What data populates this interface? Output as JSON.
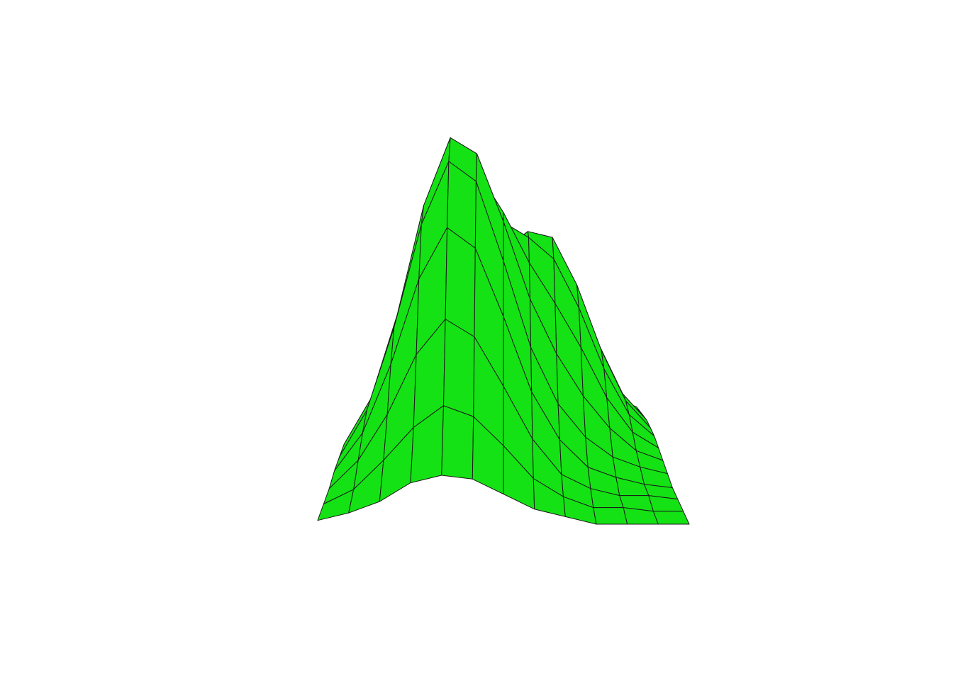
{
  "chart_data": {
    "type": "surface",
    "color": "#14e214",
    "edge_color": "#1a1a1a",
    "z": [
      [
        0.01,
        0.03,
        0.06,
        0.11,
        0.13,
        0.12,
        0.08,
        0.04,
        0.02,
        0,
        0,
        0,
        0
      ],
      [
        0.02,
        0.06,
        0.14,
        0.23,
        0.29,
        0.26,
        0.18,
        0.09,
        0.04,
        0.01,
        0.01,
        0,
        0
      ],
      [
        0.03,
        0.11,
        0.24,
        0.41,
        0.51,
        0.46,
        0.32,
        0.17,
        0.07,
        0.03,
        0.01,
        0.01,
        0
      ],
      [
        0.05,
        0.16,
        0.36,
        0.61,
        0.76,
        0.7,
        0.5,
        0.28,
        0.14,
        0.06,
        0.03,
        0.01,
        0
      ],
      [
        0.06,
        0.2,
        0.45,
        0.76,
        0.95,
        0.89,
        0.65,
        0.39,
        0.22,
        0.12,
        0.06,
        0.03,
        0.01
      ],
      [
        0.07,
        0.21,
        0.47,
        0.81,
        1.02,
        0.97,
        0.76,
        0.52,
        0.35,
        0.22,
        0.12,
        0.05,
        0.02
      ],
      [
        0.06,
        0.18,
        0.42,
        0.72,
        0.92,
        0.91,
        0.78,
        0.62,
        0.49,
        0.35,
        0.19,
        0.08,
        0.03
      ],
      [
        0.04,
        0.14,
        0.31,
        0.54,
        0.71,
        0.76,
        0.74,
        0.69,
        0.62,
        0.46,
        0.26,
        0.11,
        0.04
      ],
      [
        0.03,
        0.09,
        0.2,
        0.35,
        0.48,
        0.56,
        0.64,
        0.7,
        0.68,
        0.52,
        0.3,
        0.13,
        0.04
      ],
      [
        0.02,
        0.05,
        0.11,
        0.19,
        0.29,
        0.39,
        0.52,
        0.63,
        0.65,
        0.51,
        0.3,
        0.13,
        0.04
      ],
      [
        0.01,
        0.02,
        0.05,
        0.09,
        0.15,
        0.24,
        0.38,
        0.5,
        0.53,
        0.42,
        0.25,
        0.11,
        0.03
      ],
      [
        0,
        0.01,
        0.02,
        0.04,
        0.08,
        0.14,
        0.24,
        0.34,
        0.36,
        0.29,
        0.17,
        0.07,
        0.02
      ],
      [
        0,
        0,
        0.01,
        0.02,
        0.03,
        0.07,
        0.14,
        0.19,
        0.21,
        0.17,
        0.1,
        0.04,
        0.01
      ]
    ]
  }
}
